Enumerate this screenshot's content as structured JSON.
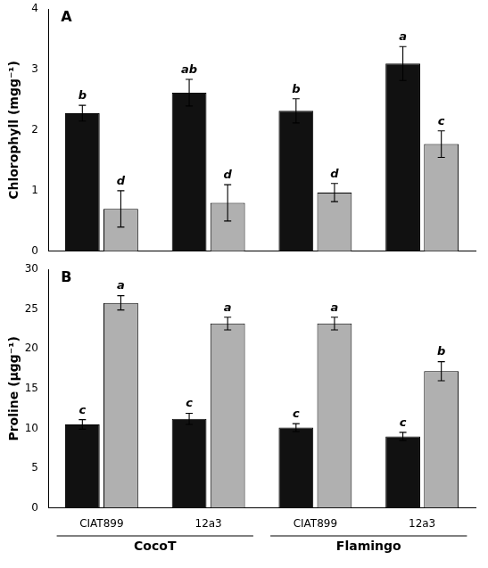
{
  "chart_data": [
    {
      "type": "bar",
      "title": "A",
      "ylabel": "Chlorophyll (mgg⁻¹)",
      "categories": [
        null,
        null,
        null,
        null
      ],
      "ylim": [
        0,
        4
      ],
      "yticks": [
        0,
        1,
        2,
        3,
        4
      ],
      "grid": false,
      "tick_labels": "y",
      "series": [
        {
          "color": "#111111",
          "values": [
            2.28,
            2.62,
            2.32,
            3.1
          ],
          "errors": [
            0.13,
            0.22,
            0.2,
            0.28
          ],
          "labels": [
            "b",
            "ab",
            "b",
            "a"
          ]
        },
        {
          "color": "#b0b0b0",
          "values": [
            0.7,
            0.8,
            0.97,
            1.77
          ],
          "errors": [
            0.3,
            0.3,
            0.15,
            0.22
          ],
          "labels": [
            "d",
            "d",
            "d",
            "c"
          ]
        }
      ]
    },
    {
      "type": "bar",
      "title": "B",
      "ylabel": "Proline (µgg⁻¹)",
      "categories": [
        "CIAT899",
        "12a3",
        "CIAT899",
        "12a3"
      ],
      "group_labels": [
        "CocoT",
        "Flamingo"
      ],
      "ylim": [
        0,
        30
      ],
      "yticks": [
        0,
        5,
        10,
        15,
        20,
        25,
        30
      ],
      "grid": false,
      "series": [
        {
          "color": "#111111",
          "values": [
            10.5,
            11.2,
            10.1,
            9.0
          ],
          "errors": [
            0.6,
            0.7,
            0.5,
            0.5
          ],
          "labels": [
            "c",
            "c",
            "c",
            "c"
          ]
        },
        {
          "color": "#b0b0b0",
          "values": [
            25.8,
            23.2,
            23.2,
            17.2
          ],
          "errors": [
            0.9,
            0.8,
            0.8,
            1.2
          ],
          "labels": [
            "a",
            "a",
            "a",
            "b"
          ]
        }
      ]
    }
  ]
}
